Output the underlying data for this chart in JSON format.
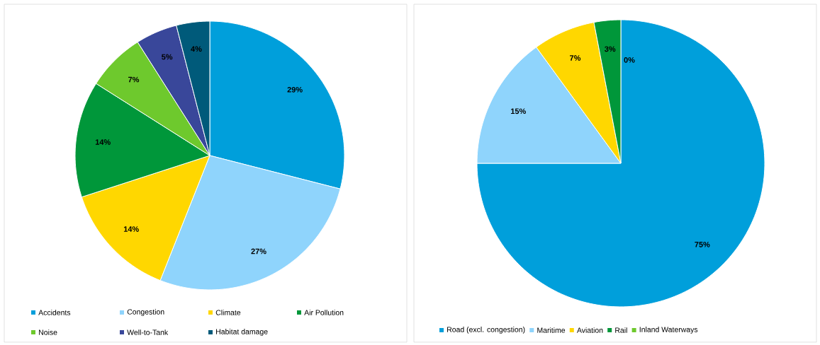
{
  "chart_data": [
    {
      "type": "pie",
      "categories": [
        "Accidents",
        "Congestion",
        "Climate",
        "Air Pollution",
        "Noise",
        "Well-to-Tank",
        "Habitat damage"
      ],
      "values": [
        29,
        27,
        14,
        14,
        7,
        5,
        4
      ],
      "value_labels": [
        "29%",
        "27%",
        "14%",
        "14%",
        "7%",
        "5%",
        "4%"
      ],
      "colors": [
        "#009fdb",
        "#8fd4fc",
        "#ffd700",
        "#00973a",
        "#6ec92d",
        "#39479a",
        "#005a7a"
      ],
      "legend": "bottom"
    },
    {
      "type": "pie",
      "categories": [
        "Road (excl. congestion)",
        "Maritime",
        "Aviation",
        "Rail",
        "Inland Waterways"
      ],
      "values": [
        75,
        15,
        7,
        3,
        0
      ],
      "value_labels": [
        "75%",
        "15%",
        "7%",
        "3%",
        "0%"
      ],
      "colors": [
        "#009fdb",
        "#8fd4fc",
        "#ffd700",
        "#00973a",
        "#6ec92d"
      ],
      "legend": "bottom"
    }
  ]
}
